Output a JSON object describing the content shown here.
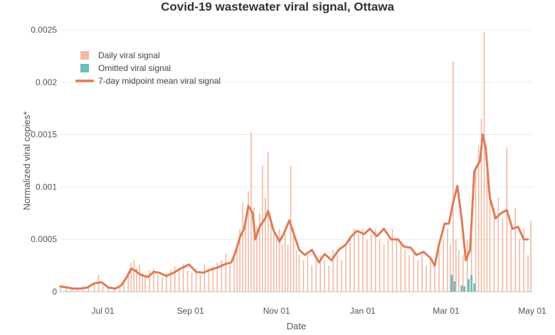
{
  "chart_data": {
    "type": "bar",
    "title": "Covid-19 wastewater viral signal, Ottawa",
    "xlabel": "Date",
    "ylabel": "Normalized viral copies*",
    "x_range": [
      "2020-06-01",
      "2021-05-01"
    ],
    "ylim": [
      0,
      0.0025
    ],
    "y_ticks": [
      0,
      0.0005,
      0.001,
      0.0015,
      0.002,
      0.0025
    ],
    "y_tick_labels": [
      "0",
      "0.0005",
      "0.001",
      "0.0015",
      "0.002",
      "0.0025"
    ],
    "x_ticks": [
      "2020-07-01",
      "2020-09-01",
      "2020-11-01",
      "2021-01-01",
      "2021-03-01",
      "2021-05-01"
    ],
    "x_tick_labels": [
      "Jul 01",
      "Sep 01",
      "Nov 01",
      "Jan 01",
      "Mar 01",
      "May 01"
    ],
    "grid": "horizontal",
    "legend_position": "top-left",
    "colors": {
      "daily": "#f2b9a2",
      "omitted": "#6bbcbc",
      "mean": "#df7c57",
      "grid": "#ececec"
    },
    "series": [
      {
        "name": "Daily viral signal",
        "kind": "bar",
        "points": [
          [
            "2020-06-01",
            5e-05
          ],
          [
            "2020-06-05",
            4e-05
          ],
          [
            "2020-06-09",
            3e-05
          ],
          [
            "2020-06-13",
            4e-05
          ],
          [
            "2020-06-17",
            5e-05
          ],
          [
            "2020-06-21",
            4e-05
          ],
          [
            "2020-06-25",
            8e-05
          ],
          [
            "2020-06-28",
            0.00016
          ],
          [
            "2020-07-01",
            6e-05
          ],
          [
            "2020-07-05",
            5e-05
          ],
          [
            "2020-07-09",
            3e-05
          ],
          [
            "2020-07-13",
            4e-05
          ],
          [
            "2020-07-16",
            0.0001
          ],
          [
            "2020-07-19",
            0.00018
          ],
          [
            "2020-07-21",
            0.00028
          ],
          [
            "2020-07-23",
            0.0003
          ],
          [
            "2020-07-25",
            0.00022
          ],
          [
            "2020-07-27",
            0.00026
          ],
          [
            "2020-07-29",
            0.00018
          ],
          [
            "2020-07-31",
            0.00016
          ],
          [
            "2020-08-03",
            0.0002
          ],
          [
            "2020-08-06",
            0.00022
          ],
          [
            "2020-08-09",
            0.00016
          ],
          [
            "2020-08-12",
            0.00014
          ],
          [
            "2020-08-15",
            0.00018
          ],
          [
            "2020-08-18",
            0.00021
          ],
          [
            "2020-08-21",
            0.00024
          ],
          [
            "2020-08-24",
            0.00022
          ],
          [
            "2020-08-27",
            0.00026
          ],
          [
            "2020-08-30",
            0.0002
          ],
          [
            "2020-09-02",
            0.00018
          ],
          [
            "2020-09-05",
            0.00022
          ],
          [
            "2020-09-08",
            0.00016
          ],
          [
            "2020-09-11",
            0.00026
          ],
          [
            "2020-09-14",
            0.0002
          ],
          [
            "2020-09-17",
            0.00024
          ],
          [
            "2020-09-20",
            0.00028
          ],
          [
            "2020-09-23",
            0.0003
          ],
          [
            "2020-09-26",
            0.00036
          ],
          [
            "2020-09-29",
            0.00026
          ],
          [
            "2020-10-02",
            0.00038
          ],
          [
            "2020-10-04",
            0.00044
          ],
          [
            "2020-10-06",
            0.0006
          ],
          [
            "2020-10-08",
            0.00085
          ],
          [
            "2020-10-10",
            0.0007
          ],
          [
            "2020-10-12",
            0.00096
          ],
          [
            "2020-10-14",
            0.00152
          ],
          [
            "2020-10-16",
            0.0008
          ],
          [
            "2020-10-18",
            0.00062
          ],
          [
            "2020-10-20",
            0.00075
          ],
          [
            "2020-10-22",
            0.0012
          ],
          [
            "2020-10-24",
            0.0009
          ],
          [
            "2020-10-26",
            0.00133
          ],
          [
            "2020-10-28",
            0.0007
          ],
          [
            "2020-10-30",
            0.00055
          ],
          [
            "2020-11-01",
            0.0005
          ],
          [
            "2020-11-03",
            0.0006
          ],
          [
            "2020-11-05",
            0.00045
          ],
          [
            "2020-11-07",
            0.00055
          ],
          [
            "2020-11-09",
            0.00045
          ],
          [
            "2020-11-11",
            0.0012
          ],
          [
            "2020-11-13",
            0.0006
          ],
          [
            "2020-11-15",
            0.0004
          ],
          [
            "2020-11-17",
            0.00035
          ],
          [
            "2020-11-20",
            0.0003
          ],
          [
            "2020-11-23",
            0.00035
          ],
          [
            "2020-11-26",
            0.00025
          ],
          [
            "2020-11-29",
            0.0003
          ],
          [
            "2020-12-02",
            0.00035
          ],
          [
            "2020-12-05",
            0.0003
          ],
          [
            "2020-12-08",
            0.00025
          ],
          [
            "2020-12-11",
            0.0004
          ],
          [
            "2020-12-14",
            0.00035
          ],
          [
            "2020-12-17",
            0.0003
          ],
          [
            "2020-12-20",
            0.00045
          ],
          [
            "2020-12-23",
            0.0005
          ],
          [
            "2020-12-26",
            0.0006
          ],
          [
            "2020-12-29",
            0.00055
          ],
          [
            "2021-01-01",
            0.0006
          ],
          [
            "2021-01-04",
            0.0005
          ],
          [
            "2021-01-07",
            0.00055
          ],
          [
            "2021-01-10",
            0.0006
          ],
          [
            "2021-01-13",
            0.0005
          ],
          [
            "2021-01-16",
            0.00045
          ],
          [
            "2021-01-19",
            0.0005
          ],
          [
            "2021-01-22",
            0.0006
          ],
          [
            "2021-01-25",
            0.0005
          ],
          [
            "2021-01-28",
            0.00045
          ],
          [
            "2021-01-31",
            0.0004
          ],
          [
            "2021-02-03",
            0.00035
          ],
          [
            "2021-02-06",
            0.0004
          ],
          [
            "2021-02-09",
            0.0003
          ],
          [
            "2021-02-12",
            0.00035
          ],
          [
            "2021-02-15",
            0.00025
          ],
          [
            "2021-02-18",
            0.0003
          ],
          [
            "2021-02-21",
            0.00025
          ],
          [
            "2021-02-24",
            0.0004
          ],
          [
            "2021-02-27",
            0.0005
          ],
          [
            "2021-03-02",
            0.0006
          ],
          [
            "2021-03-04",
            0.00045
          ],
          [
            "2021-03-06",
            0.0022
          ],
          [
            "2021-03-08",
            0.0005
          ],
          [
            "2021-03-10",
            0.0004
          ],
          [
            "2021-03-13",
            0.00035
          ],
          [
            "2021-03-16",
            0.0005
          ],
          [
            "2021-03-19",
            0.0006
          ],
          [
            "2021-03-22",
            0.0012
          ],
          [
            "2021-03-24",
            0.0014
          ],
          [
            "2021-03-26",
            0.00165
          ],
          [
            "2021-03-28",
            0.00248
          ],
          [
            "2021-03-30",
            0.0013
          ],
          [
            "2021-04-01",
            0.00095
          ],
          [
            "2021-04-04",
            0.0008
          ],
          [
            "2021-04-07",
            0.0009
          ],
          [
            "2021-04-10",
            0.0007
          ],
          [
            "2021-04-13",
            0.00138
          ],
          [
            "2021-04-16",
            0.0006
          ],
          [
            "2021-04-19",
            0.0008
          ],
          [
            "2021-04-22",
            0.0005
          ],
          [
            "2021-04-25",
            0.0006
          ],
          [
            "2021-04-28",
            0.00035
          ],
          [
            "2021-04-30",
            0.00068
          ]
        ]
      },
      {
        "name": "Omitted viral signal",
        "kind": "bar",
        "points": [
          [
            "2021-03-05",
            0.00016
          ],
          [
            "2021-03-07",
            0.0001
          ],
          [
            "2021-03-12",
            6e-05
          ],
          [
            "2021-03-14",
            5e-05
          ],
          [
            "2021-03-17",
            0.00012
          ],
          [
            "2021-03-19",
            0.00016
          ],
          [
            "2021-03-21",
            8e-05
          ]
        ]
      },
      {
        "name": "7-day midpoint mean viral signal",
        "kind": "line",
        "points": [
          [
            "2020-06-01",
            5e-05
          ],
          [
            "2020-06-06",
            4e-05
          ],
          [
            "2020-06-10",
            3e-05
          ],
          [
            "2020-06-15",
            3e-05
          ],
          [
            "2020-06-20",
            4e-05
          ],
          [
            "2020-06-25",
            8e-05
          ],
          [
            "2020-06-30",
            9e-05
          ],
          [
            "2020-07-05",
            4e-05
          ],
          [
            "2020-07-10",
            3e-05
          ],
          [
            "2020-07-14",
            6e-05
          ],
          [
            "2020-07-18",
            0.00014
          ],
          [
            "2020-07-21",
            0.00022
          ],
          [
            "2020-07-24",
            0.0002
          ],
          [
            "2020-07-28",
            0.00016
          ],
          [
            "2020-08-02",
            0.00014
          ],
          [
            "2020-08-06",
            0.00019
          ],
          [
            "2020-08-10",
            0.00018
          ],
          [
            "2020-08-15",
            0.00015
          ],
          [
            "2020-08-20",
            0.00018
          ],
          [
            "2020-08-25",
            0.00022
          ],
          [
            "2020-08-31",
            0.00026
          ],
          [
            "2020-09-05",
            0.00019
          ],
          [
            "2020-09-10",
            0.00018
          ],
          [
            "2020-09-15",
            0.00021
          ],
          [
            "2020-09-20",
            0.00023
          ],
          [
            "2020-09-25",
            0.00026
          ],
          [
            "2020-09-30",
            0.00028
          ],
          [
            "2020-10-03",
            0.00038
          ],
          [
            "2020-10-06",
            0.00052
          ],
          [
            "2020-10-09",
            0.0006
          ],
          [
            "2020-10-12",
            0.00082
          ],
          [
            "2020-10-15",
            0.00075
          ],
          [
            "2020-10-17",
            0.0005
          ],
          [
            "2020-10-20",
            0.00062
          ],
          [
            "2020-10-24",
            0.0007
          ],
          [
            "2020-10-26",
            0.00077
          ],
          [
            "2020-10-30",
            0.00058
          ],
          [
            "2020-11-03",
            0.00048
          ],
          [
            "2020-11-06",
            0.00055
          ],
          [
            "2020-11-10",
            0.00068
          ],
          [
            "2020-11-13",
            0.00056
          ],
          [
            "2020-11-17",
            0.0004
          ],
          [
            "2020-11-21",
            0.00035
          ],
          [
            "2020-11-26",
            0.0004
          ],
          [
            "2020-12-01",
            0.00028
          ],
          [
            "2020-12-05",
            0.00036
          ],
          [
            "2020-12-10",
            0.0003
          ],
          [
            "2020-12-15",
            0.0004
          ],
          [
            "2020-12-20",
            0.00045
          ],
          [
            "2020-12-24",
            0.00053
          ],
          [
            "2020-12-28",
            0.00058
          ],
          [
            "2021-01-02",
            0.00055
          ],
          [
            "2021-01-06",
            0.0006
          ],
          [
            "2021-01-11",
            0.00053
          ],
          [
            "2021-01-16",
            0.0006
          ],
          [
            "2021-01-21",
            0.0005
          ],
          [
            "2021-01-26",
            0.0005
          ],
          [
            "2021-01-30",
            0.00043
          ],
          [
            "2021-02-04",
            0.00042
          ],
          [
            "2021-02-08",
            0.00035
          ],
          [
            "2021-02-13",
            0.00038
          ],
          [
            "2021-02-18",
            0.00032
          ],
          [
            "2021-02-21",
            0.00025
          ],
          [
            "2021-02-24",
            0.00045
          ],
          [
            "2021-02-28",
            0.00065
          ],
          [
            "2021-03-03",
            0.00065
          ],
          [
            "2021-03-06",
            0.00085
          ],
          [
            "2021-03-09",
            0.00101
          ],
          [
            "2021-03-12",
            0.0007
          ],
          [
            "2021-03-15",
            0.0003
          ],
          [
            "2021-03-18",
            0.0004
          ],
          [
            "2021-03-21",
            0.00115
          ],
          [
            "2021-03-25",
            0.00125
          ],
          [
            "2021-03-27",
            0.0015
          ],
          [
            "2021-03-29",
            0.00138
          ],
          [
            "2021-04-01",
            0.0009
          ],
          [
            "2021-04-05",
            0.0007
          ],
          [
            "2021-04-09",
            0.00075
          ],
          [
            "2021-04-13",
            0.00078
          ],
          [
            "2021-04-17",
            0.0006
          ],
          [
            "2021-04-21",
            0.00062
          ],
          [
            "2021-04-25",
            0.0005
          ],
          [
            "2021-04-28",
            0.0005
          ]
        ]
      }
    ]
  }
}
